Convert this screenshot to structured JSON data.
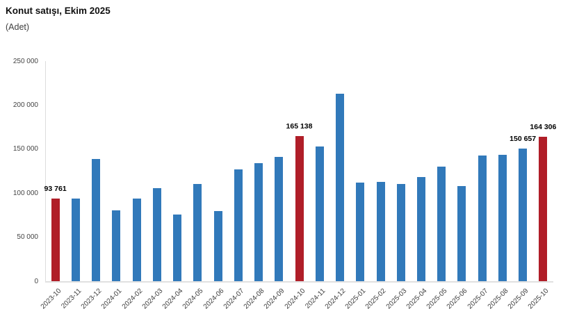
{
  "header": {
    "title": "Konut satışı, Ekim 2025",
    "subtitle": "(Adet)"
  },
  "chart_data": {
    "type": "bar",
    "title": "Konut satışı, Ekim 2025",
    "unit_label": "(Adet)",
    "categories": [
      "2023-10",
      "2023-11",
      "2023-12",
      "2024-01",
      "2024-02",
      "2024-03",
      "2024-04",
      "2024-05",
      "2024-06",
      "2024-07",
      "2024-08",
      "2024-09",
      "2024-10",
      "2024-11",
      "2024-12",
      "2025-01",
      "2025-02",
      "2025-03",
      "2025-04",
      "2025-05",
      "2025-06",
      "2025-07",
      "2025-08",
      "2025-09",
      "2025-10"
    ],
    "values": [
      93761,
      93790,
      138577,
      80308,
      93902,
      105476,
      75569,
      110588,
      79313,
      127088,
      134155,
      140919,
      165138,
      153014,
      212637,
      112173,
      112818,
      110795,
      118359,
      130025,
      107723,
      142858,
      143319,
      150657,
      164306
    ],
    "highlighted_categories": [
      "2023-10",
      "2024-10",
      "2025-10"
    ],
    "data_labels": [
      {
        "category": "2023-10",
        "text": "93 761"
      },
      {
        "category": "2024-10",
        "text": "165 138"
      },
      {
        "category": "2025-09",
        "text": "150 657"
      },
      {
        "category": "2025-10",
        "text": "164 306"
      }
    ],
    "ylim": [
      0,
      250000
    ],
    "ytick_labels": [
      "0",
      "50 000",
      "100 000",
      "150 000",
      "200 000",
      "250 000"
    ],
    "grid": false,
    "legend": "none",
    "bar_color": "#3179ba",
    "highlight_color": "#b01e28",
    "axis_color": "#dcdcdc",
    "tick_label_color": "#404040"
  }
}
